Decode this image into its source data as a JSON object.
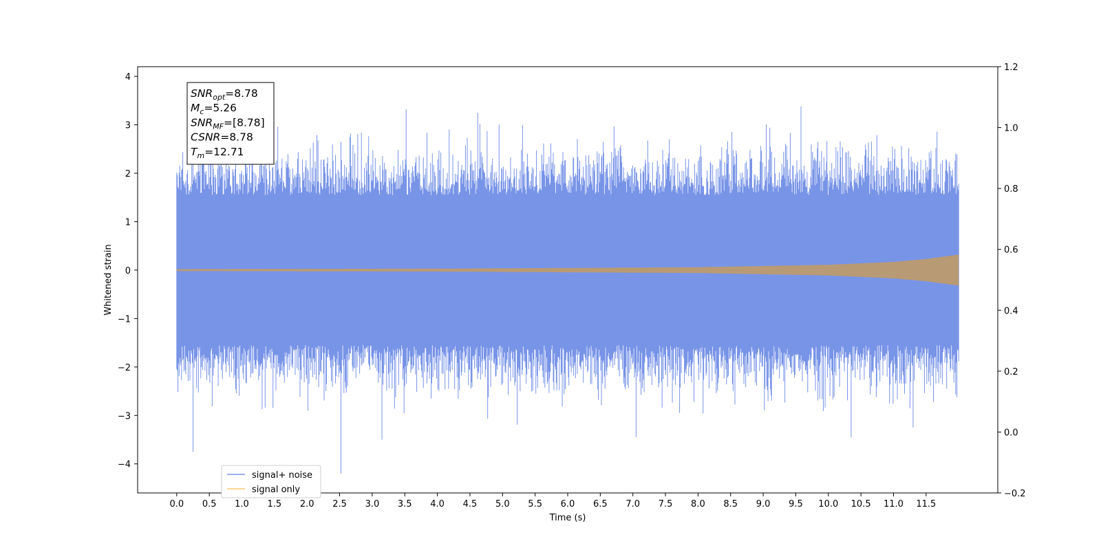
{
  "chart_data": {
    "type": "line",
    "title": "",
    "xlabel": "Time (s)",
    "ylabel": "Whitened strain",
    "xlim": [
      -0.6,
      12.6
    ],
    "ylim": [
      -4.6,
      4.2
    ],
    "ylim_right": [
      -0.2,
      1.2
    ],
    "x_ticks": [
      0.0,
      0.5,
      1.0,
      1.5,
      2.0,
      2.5,
      3.0,
      3.5,
      4.0,
      4.5,
      5.0,
      5.5,
      6.0,
      6.5,
      7.0,
      7.5,
      8.0,
      8.5,
      9.0,
      9.5,
      10.0,
      10.5,
      11.0,
      11.5
    ],
    "x_tick_labels": [
      "0.0",
      "0.5",
      "1.0",
      "1.5",
      "2.0",
      "2.5",
      "3.0",
      "3.5",
      "4.0",
      "4.5",
      "5.0",
      "5.5",
      "6.0",
      "6.5",
      "7.0",
      "7.5",
      "8.0",
      "8.5",
      "9.0",
      "9.5",
      "10.0",
      "10.5",
      "11.0",
      "11.5"
    ],
    "y_ticks": [
      -4,
      -3,
      -2,
      -1,
      0,
      1,
      2,
      3,
      4
    ],
    "y_tick_labels": [
      "−4",
      "−3",
      "−2",
      "−1",
      "0",
      "1",
      "2",
      "3",
      "4"
    ],
    "y_ticks_right": [
      -0.2,
      0.0,
      0.2,
      0.4,
      0.6,
      0.8,
      1.0,
      1.2
    ],
    "y_tick_labels_right": [
      "−0.2",
      "0.0",
      "0.2",
      "0.4",
      "0.6",
      "0.8",
      "1.0",
      "1.2"
    ],
    "series": [
      {
        "name": "signal+ noise",
        "color": "#7894e7",
        "x_range": [
          0.0,
          12.0
        ],
        "typical_envelope": [
          -1.4,
          1.4
        ],
        "extremes": [
          {
            "x": 0.25,
            "y": -3.75
          },
          {
            "x": 2.52,
            "y": -4.2
          },
          {
            "x": 3.15,
            "y": -3.5
          },
          {
            "x": 3.52,
            "y": 3.32
          },
          {
            "x": 4.62,
            "y": 3.25
          },
          {
            "x": 7.05,
            "y": -3.45
          },
          {
            "x": 9.58,
            "y": 3.38
          },
          {
            "x": 10.35,
            "y": -3.45
          },
          {
            "x": 11.3,
            "y": -3.25
          }
        ]
      },
      {
        "name": "signal only",
        "color": "#ffc870",
        "x_range": [
          0.0,
          12.0
        ],
        "envelope": [
          {
            "x": 0.0,
            "amp": 0.02
          },
          {
            "x": 4.0,
            "amp": 0.03
          },
          {
            "x": 8.0,
            "amp": 0.06
          },
          {
            "x": 10.0,
            "amp": 0.11
          },
          {
            "x": 11.0,
            "amp": 0.17
          },
          {
            "x": 11.5,
            "amp": 0.23
          },
          {
            "x": 12.0,
            "amp": 0.32
          }
        ]
      }
    ],
    "legend_position": "lower left",
    "grid": false
  },
  "info_box": {
    "lines": [
      {
        "main": "SNR",
        "sub": "opt",
        "value": "=8.78"
      },
      {
        "main": "M",
        "sub": "c",
        "value": "=5.26"
      },
      {
        "main": "SNR",
        "sub": "MF",
        "value": "=[8.78]"
      },
      {
        "main": "CSNR",
        "sub": "",
        "value": "=8.78"
      },
      {
        "main": "T",
        "sub": "m",
        "value": "=12.71"
      }
    ]
  },
  "colors": {
    "noise_fill": "#7894e7",
    "signal_fill": "#b89a74",
    "signal_legend": "#ffc870"
  }
}
